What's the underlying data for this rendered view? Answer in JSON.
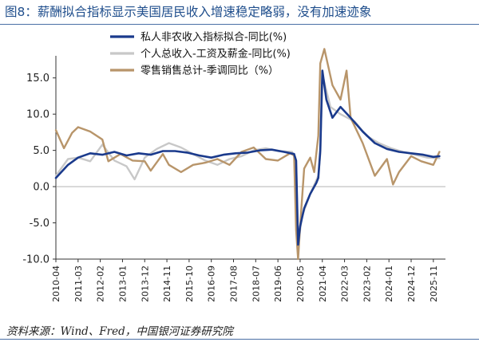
{
  "figure": {
    "title": "图8：薪酬拟合指标显示美国居民收入增速稳定略弱，没有加速迹象",
    "source": "资料来源：Wind、Fred，中国银河证券研究院"
  },
  "colors": {
    "private_income": "#1a3a8c",
    "personal_total_income": "#c8c8c8",
    "retail_sales": "#b8956a",
    "axis": "#333333",
    "title": "#1f4e8c"
  },
  "chart_data": {
    "type": "line",
    "x_tick_labels": [
      "2010-04",
      "2011-03",
      "2012-02",
      "2013-01",
      "2013-12",
      "2014-11",
      "2015-10",
      "2016-09",
      "2017-08",
      "2018-07",
      "2019-06",
      "2020-05",
      "2021-04",
      "2022-03",
      "2023-02",
      "2024-01",
      "2024-12",
      "2025-11"
    ],
    "x_range": [
      "2010-04",
      "2026-05"
    ],
    "y_tick_labels": [
      "15.0",
      "10.0",
      "5.0",
      "0.0",
      "-5.0",
      "-10.0"
    ],
    "y_ticks": [
      15,
      10,
      5,
      0,
      -5,
      -10
    ],
    "ylim": [
      -10,
      17.5
    ],
    "grid": false,
    "legend_position": "top-center",
    "series": [
      {
        "name": "私人非农收入指标拟合-同比(%)",
        "color_key": "private_income",
        "points": [
          [
            "2010-04",
            1.2
          ],
          [
            "2010-10",
            3.0
          ],
          [
            "2011-03",
            4.0
          ],
          [
            "2011-09",
            4.6
          ],
          [
            "2012-03",
            4.4
          ],
          [
            "2012-09",
            4.8
          ],
          [
            "2013-03",
            4.3
          ],
          [
            "2013-09",
            4.6
          ],
          [
            "2014-03",
            4.4
          ],
          [
            "2014-09",
            4.9
          ],
          [
            "2015-03",
            4.9
          ],
          [
            "2015-09",
            4.7
          ],
          [
            "2016-03",
            4.3
          ],
          [
            "2016-09",
            4.0
          ],
          [
            "2017-03",
            4.4
          ],
          [
            "2017-09",
            4.6
          ],
          [
            "2018-03",
            4.7
          ],
          [
            "2018-09",
            5.0
          ],
          [
            "2019-03",
            5.1
          ],
          [
            "2019-09",
            4.8
          ],
          [
            "2020-02",
            4.5
          ],
          [
            "2020-03",
            3.6
          ],
          [
            "2020-04",
            -8.0
          ],
          [
            "2020-05",
            -5.5
          ],
          [
            "2020-07",
            -3.0
          ],
          [
            "2020-10",
            -1.0
          ],
          [
            "2021-01",
            0.5
          ],
          [
            "2021-02",
            1.2
          ],
          [
            "2021-03",
            5.0
          ],
          [
            "2021-04",
            16.0
          ],
          [
            "2021-06",
            12.0
          ],
          [
            "2021-09",
            9.5
          ],
          [
            "2022-01",
            11.0
          ],
          [
            "2022-06",
            9.5
          ],
          [
            "2022-12",
            7.6
          ],
          [
            "2023-06",
            6.0
          ],
          [
            "2023-12",
            5.2
          ],
          [
            "2024-06",
            4.8
          ],
          [
            "2024-12",
            4.6
          ],
          [
            "2025-06",
            4.4
          ],
          [
            "2025-11",
            4.1
          ],
          [
            "2026-02",
            4.2
          ]
        ]
      },
      {
        "name": "个人总收入-工资及薪金-同比(%)",
        "color_key": "personal_total_income",
        "points": [
          [
            "2010-04",
            1.5
          ],
          [
            "2010-10",
            3.8
          ],
          [
            "2011-03",
            4.0
          ],
          [
            "2011-09",
            3.5
          ],
          [
            "2012-03",
            5.8
          ],
          [
            "2012-09",
            3.6
          ],
          [
            "2013-03",
            2.8
          ],
          [
            "2013-07",
            1.0
          ],
          [
            "2013-12",
            4.0
          ],
          [
            "2014-06",
            5.2
          ],
          [
            "2014-12",
            6.0
          ],
          [
            "2015-06",
            5.4
          ],
          [
            "2015-12",
            4.5
          ],
          [
            "2016-06",
            3.6
          ],
          [
            "2016-12",
            3.0
          ],
          [
            "2017-06",
            3.8
          ],
          [
            "2017-12",
            4.2
          ],
          [
            "2018-06",
            5.0
          ],
          [
            "2018-12",
            5.3
          ],
          [
            "2019-06",
            4.9
          ],
          [
            "2020-01",
            4.8
          ],
          [
            "2020-03",
            3.5
          ],
          [
            "2020-04",
            -8.0
          ],
          [
            "2020-06",
            -4.0
          ],
          [
            "2020-10",
            -1.0
          ],
          [
            "2021-02",
            1.5
          ],
          [
            "2021-03",
            4.5
          ],
          [
            "2021-04",
            15.5
          ],
          [
            "2021-08",
            11.0
          ],
          [
            "2022-01",
            10.0
          ],
          [
            "2022-08",
            9.0
          ],
          [
            "2023-02",
            7.0
          ],
          [
            "2023-08",
            6.0
          ],
          [
            "2024-02",
            5.3
          ],
          [
            "2024-08",
            4.8
          ],
          [
            "2025-02",
            4.4
          ],
          [
            "2025-08",
            4.0
          ],
          [
            "2026-02",
            3.9
          ]
        ]
      },
      {
        "name": "零售销售总计-季调同比（%）",
        "color_key": "retail_sales",
        "points": [
          [
            "2010-04",
            7.8
          ],
          [
            "2010-08",
            5.3
          ],
          [
            "2010-12",
            7.4
          ],
          [
            "2011-03",
            8.2
          ],
          [
            "2011-09",
            7.6
          ],
          [
            "2012-03",
            6.5
          ],
          [
            "2012-06",
            3.5
          ],
          [
            "2012-12",
            4.5
          ],
          [
            "2013-06",
            3.6
          ],
          [
            "2013-12",
            3.5
          ],
          [
            "2014-03",
            2.2
          ],
          [
            "2014-09",
            4.5
          ],
          [
            "2014-12",
            3.0
          ],
          [
            "2015-06",
            2.0
          ],
          [
            "2015-12",
            3.0
          ],
          [
            "2016-06",
            3.3
          ],
          [
            "2016-12",
            3.8
          ],
          [
            "2017-06",
            3.0
          ],
          [
            "2017-12",
            4.8
          ],
          [
            "2018-06",
            5.4
          ],
          [
            "2018-12",
            3.8
          ],
          [
            "2019-06",
            3.6
          ],
          [
            "2019-12",
            4.6
          ],
          [
            "2020-02",
            4.3
          ],
          [
            "2020-03",
            -6.0
          ],
          [
            "2020-04",
            -10.0
          ],
          [
            "2020-05",
            -5.5
          ],
          [
            "2020-07",
            2.5
          ],
          [
            "2020-10",
            4.0
          ],
          [
            "2020-12",
            2.0
          ],
          [
            "2021-02",
            7.0
          ],
          [
            "2021-03",
            17.0
          ],
          [
            "2021-05",
            19.0
          ],
          [
            "2021-09",
            14.0
          ],
          [
            "2022-01",
            12.0
          ],
          [
            "2022-04",
            16.0
          ],
          [
            "2022-06",
            9.5
          ],
          [
            "2022-12",
            6.0
          ],
          [
            "2023-06",
            1.5
          ],
          [
            "2023-12",
            3.8
          ],
          [
            "2024-03",
            0.3
          ],
          [
            "2024-06",
            2.0
          ],
          [
            "2024-12",
            4.2
          ],
          [
            "2025-05",
            3.5
          ],
          [
            "2025-11",
            3.0
          ],
          [
            "2026-02",
            4.8
          ]
        ]
      }
    ]
  }
}
